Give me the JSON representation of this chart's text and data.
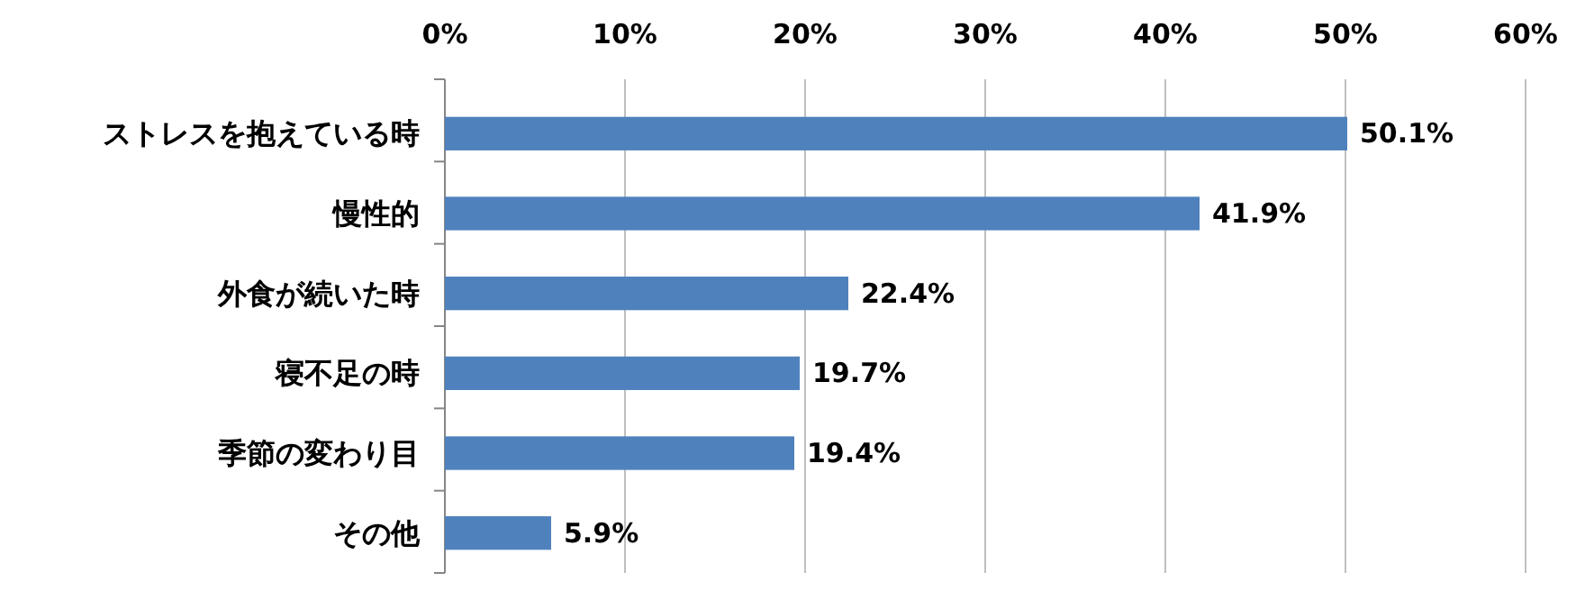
{
  "chart_data": {
    "type": "bar",
    "orientation": "horizontal",
    "categories": [
      "ストレスを抱えている時",
      "慢性的",
      "外食が続いた時",
      "寝不足の時",
      "季節の変わり目",
      "その他"
    ],
    "values": [
      50.1,
      41.9,
      22.4,
      19.7,
      19.4,
      5.9
    ],
    "value_labels": [
      "50.1%",
      "41.9%",
      "22.4%",
      "19.7%",
      "19.4%",
      "5.9%"
    ],
    "color": "#4f81bd",
    "xlim": [
      0,
      60
    ],
    "xticks": [
      {
        "value": 0,
        "label": "0%"
      },
      {
        "value": 10,
        "label": "10%"
      },
      {
        "value": 20,
        "label": "20%"
      },
      {
        "value": 30,
        "label": "30%"
      },
      {
        "value": 40,
        "label": "40%"
      },
      {
        "value": 50,
        "label": "50%"
      },
      {
        "value": 60,
        "label": "60%"
      }
    ],
    "grid": "x"
  }
}
